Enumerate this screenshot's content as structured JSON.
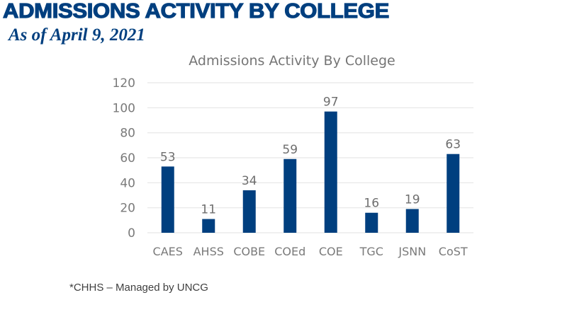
{
  "page": {
    "heading": "ADMISSIONS ACTIVITY BY COLLEGE",
    "subheading": "As of April 9, 2021",
    "footnote": "*CHHS – Managed by UNCG"
  },
  "colors": {
    "heading": "#003f7f",
    "bar": "#003f7f",
    "gridline": "#e6e6e6",
    "axis_text": "#7a7a7a"
  },
  "chart_data": {
    "type": "bar",
    "title": "Admissions Activity By College",
    "xlabel": "",
    "ylabel": "",
    "categories": [
      "CAES",
      "AHSS",
      "COBE",
      "COEd",
      "COE",
      "TGC",
      "JSNN",
      "CoST"
    ],
    "values": [
      53,
      11,
      34,
      59,
      97,
      16,
      19,
      63
    ],
    "ylim": [
      0,
      120
    ],
    "yticks": [
      0,
      20,
      40,
      60,
      80,
      100,
      120
    ],
    "grid": true,
    "legend": "none",
    "data_labels": true
  }
}
